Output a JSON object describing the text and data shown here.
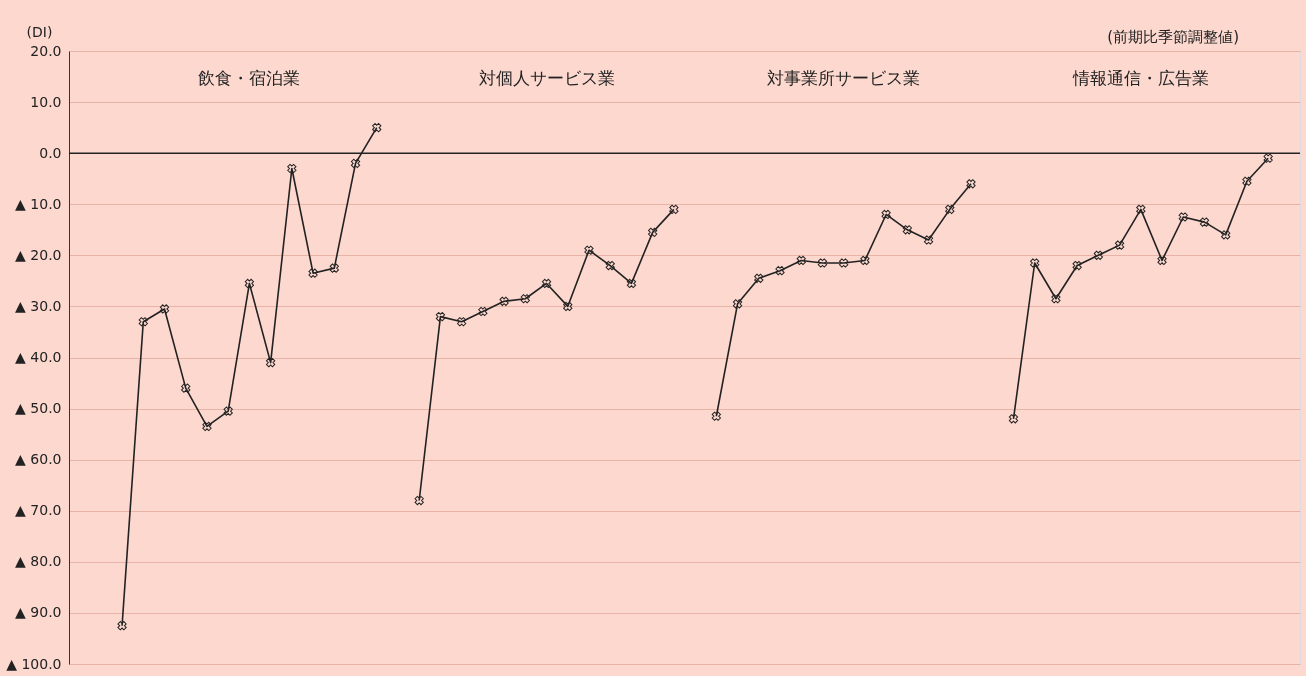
{
  "chart_data": {
    "type": "line",
    "ylabel": "(DI)",
    "annotations": [
      "飲食・宿泊業",
      "対個人サービス業",
      "対事業所サービス業",
      "情報通信・広告業",
      "(前期比季節調整値)"
    ],
    "categories": [
      null,
      null,
      null,
      null,
      null,
      null,
      null,
      null,
      null,
      null,
      null,
      null,
      null,
      null,
      null,
      null,
      null,
      null,
      null,
      null,
      null,
      null,
      null,
      null,
      null,
      null,
      null,
      null,
      null,
      null,
      null,
      null,
      null,
      null,
      null,
      null,
      null,
      null,
      null,
      null,
      null,
      null,
      null,
      null,
      null,
      null,
      null,
      null,
      null,
      null,
      null,
      null,
      null,
      null,
      null,
      null,
      null,
      null
    ],
    "series": [
      {
        "color": "#222222",
        "values": [
          null,
          null,
          -92.5,
          -33,
          -30.5,
          -46,
          -53.5,
          -50.5,
          -25.5,
          -41,
          -3,
          -23.5,
          -22.5,
          -2,
          5,
          null,
          null,
          null,
          null,
          null,
          null,
          null,
          null,
          null,
          null,
          null,
          null,
          null,
          null,
          null,
          null,
          null,
          null,
          null,
          null,
          null,
          null,
          null,
          null,
          null,
          null,
          null,
          null,
          null,
          null,
          null,
          null,
          null,
          null,
          null,
          null,
          null,
          null,
          null,
          null,
          null,
          null,
          null
        ]
      },
      {
        "color": "#222222",
        "values": [
          null,
          null,
          null,
          null,
          null,
          null,
          null,
          null,
          null,
          null,
          null,
          null,
          null,
          null,
          null,
          null,
          -68,
          -32,
          -33,
          -31,
          -29,
          -28.5,
          -25.5,
          -30,
          -19,
          -22,
          -25.5,
          -15.5,
          -11,
          null,
          null,
          null,
          null,
          null,
          null,
          null,
          null,
          null,
          null,
          null,
          null,
          null,
          null,
          null,
          null,
          null,
          null,
          null,
          null,
          null,
          null,
          null,
          null,
          null,
          null,
          null,
          null,
          null
        ]
      },
      {
        "color": "#222222",
        "values": [
          null,
          null,
          null,
          null,
          null,
          null,
          null,
          null,
          null,
          null,
          null,
          null,
          null,
          null,
          null,
          null,
          null,
          null,
          null,
          null,
          null,
          null,
          null,
          null,
          null,
          null,
          null,
          null,
          null,
          null,
          -51.5,
          -29.5,
          -24.5,
          -23,
          -21,
          -21.5,
          -21.5,
          -21,
          -12,
          -15,
          -17,
          -11,
          -6,
          null,
          null,
          null,
          null,
          null,
          null,
          null,
          null,
          null,
          null,
          null,
          null,
          null,
          null,
          null
        ]
      },
      {
        "color": "#222222",
        "values": [
          null,
          null,
          null,
          null,
          null,
          null,
          null,
          null,
          null,
          null,
          null,
          null,
          null,
          null,
          null,
          null,
          null,
          null,
          null,
          null,
          null,
          null,
          null,
          null,
          null,
          null,
          null,
          null,
          null,
          null,
          null,
          null,
          null,
          null,
          null,
          null,
          null,
          null,
          null,
          null,
          null,
          null,
          null,
          null,
          -52,
          -21.5,
          -28.5,
          -22,
          -20,
          -18,
          -11,
          -21,
          -12.5,
          -13.5,
          -16,
          -5.5,
          -1,
          null
        ]
      }
    ],
    "ylim": [
      -100,
      20
    ],
    "yticks": [
      {
        "value": 20,
        "label": "20.0"
      },
      {
        "value": 10,
        "label": "10.0"
      },
      {
        "value": 0,
        "label": "0.0"
      },
      {
        "value": -10,
        "label": "▲ 10.0"
      },
      {
        "value": -20,
        "label": "▲ 20.0"
      },
      {
        "value": -30,
        "label": "▲ 30.0"
      },
      {
        "value": -40,
        "label": "▲ 40.0"
      },
      {
        "value": -50,
        "label": "▲ 50.0"
      },
      {
        "value": -60,
        "label": "▲ 60.0"
      },
      {
        "value": -70,
        "label": "▲ 70.0"
      },
      {
        "value": -80,
        "label": "▲ 80.0"
      },
      {
        "value": -90,
        "label": "▲ 90.0"
      },
      {
        "value": -100,
        "label": "▲ 100.0"
      }
    ],
    "tick_labels": "y",
    "ref_lines": [
      {
        "axis": "y",
        "value": 0,
        "color": "#222222",
        "line_style": "solid"
      }
    ],
    "grid": "y",
    "marker": "cross",
    "line_style": "solid"
  }
}
